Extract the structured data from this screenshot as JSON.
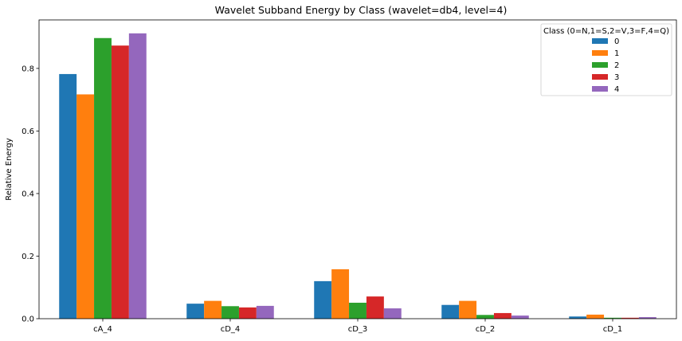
{
  "chart_data": {
    "type": "bar",
    "title": "Wavelet Subband Energy by Class (wavelet=db4, level=4)",
    "xlabel": "",
    "ylabel": "Relative Energy",
    "categories": [
      "cA_4",
      "cD_4",
      "cD_3",
      "cD_2",
      "cD_1"
    ],
    "ylim": [
      0,
      0.955
    ],
    "yticks": [
      0.0,
      0.2,
      0.4,
      0.6,
      0.8
    ],
    "ytick_labels": [
      "0.0",
      "0.2",
      "0.4",
      "0.6",
      "0.8"
    ],
    "grid": false,
    "legend": {
      "title": "Class (0=N,1=S,2=V,3=F,4=Q)",
      "placement": "top-right"
    },
    "series": [
      {
        "name": "0",
        "color": "#1f77b4",
        "values": [
          0.782,
          0.048,
          0.12,
          0.044,
          0.007
        ]
      },
      {
        "name": "1",
        "color": "#ff7f0e",
        "values": [
          0.717,
          0.057,
          0.158,
          0.057,
          0.013
        ]
      },
      {
        "name": "2",
        "color": "#2ca02c",
        "values": [
          0.897,
          0.04,
          0.051,
          0.012,
          0.003
        ]
      },
      {
        "name": "3",
        "color": "#d62728",
        "values": [
          0.873,
          0.036,
          0.071,
          0.018,
          0.003
        ]
      },
      {
        "name": "4",
        "color": "#9467bd",
        "values": [
          0.912,
          0.041,
          0.033,
          0.01,
          0.005
        ]
      }
    ]
  }
}
